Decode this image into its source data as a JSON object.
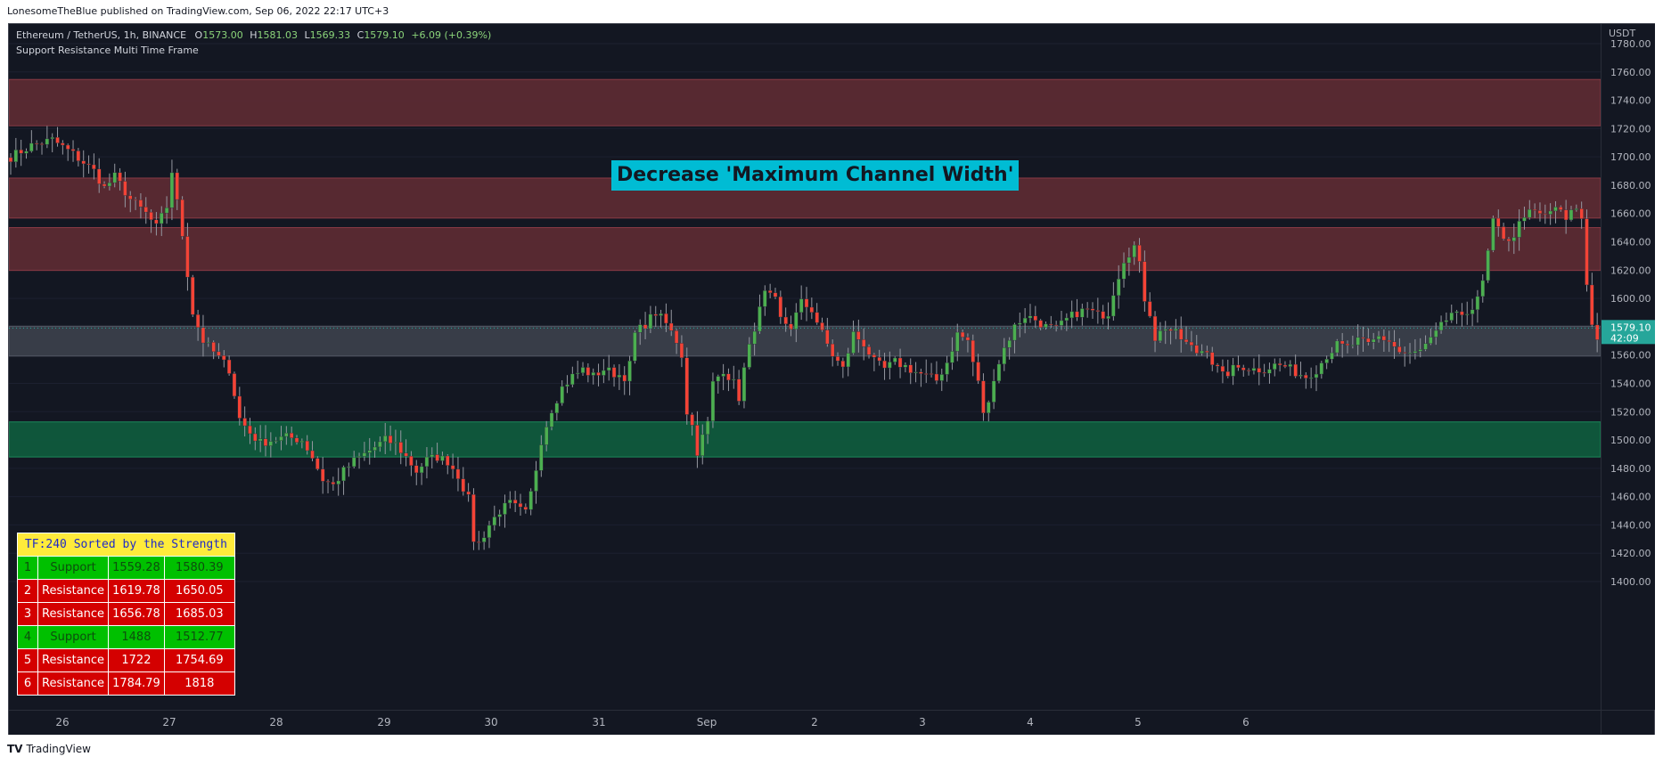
{
  "publisher_line": "LonesomeTheBlue published on TradingView.com, Sep 06, 2022 22:17 UTC+3",
  "legend": {
    "symbol": "Ethereum / TetherUS, 1h, BINANCE",
    "o_label": "O",
    "o": "1573.00",
    "h_label": "H",
    "h": "1581.03",
    "l_label": "L",
    "l": "1569.33",
    "c_label": "C",
    "c": "1579.10",
    "change": "+6.09 (+0.39%)",
    "indicator": "Support Resistance Multi Time Frame"
  },
  "annotation": "Decrease 'Maximum Channel Width'",
  "price_axis": {
    "currency": "USDT",
    "ticks": [
      "1780.00",
      "1760.00",
      "1740.00",
      "1720.00",
      "1700.00",
      "1680.00",
      "1660.00",
      "1640.00",
      "1620.00",
      "1600.00",
      "1580.00",
      "1560.00",
      "1540.00",
      "1520.00",
      "1500.00",
      "1480.00",
      "1460.00",
      "1440.00",
      "1420.00",
      "1400.00"
    ],
    "last_price": "1579.10",
    "countdown": "42:09"
  },
  "time_axis": {
    "labels": [
      "26",
      "27",
      "28",
      "29",
      "30",
      "31",
      "Sep",
      "2",
      "3",
      "4",
      "5",
      "6"
    ]
  },
  "sr_table": {
    "header": "TF:240 Sorted by the Strength",
    "rows": [
      {
        "n": "1",
        "type": "Support",
        "low": "1559.28",
        "high": "1580.39"
      },
      {
        "n": "2",
        "type": "Resistance",
        "low": "1619.78",
        "high": "1650.05"
      },
      {
        "n": "3",
        "type": "Resistance",
        "low": "1656.78",
        "high": "1685.03"
      },
      {
        "n": "4",
        "type": "Support",
        "low": "1488",
        "high": "1512.77"
      },
      {
        "n": "5",
        "type": "Resistance",
        "low": "1722",
        "high": "1754.69"
      },
      {
        "n": "6",
        "type": "Resistance",
        "low": "1784.79",
        "high": "1818"
      }
    ]
  },
  "footer": {
    "logo": "TV",
    "brand": "TradingView"
  },
  "colors": {
    "background": "#131722",
    "up": "#26a69a",
    "up_candle": "#4caf50",
    "down_candle": "#f44336",
    "resistance_zone": "#5b2a33",
    "support_zone": "#0f5a3d",
    "neutral_zone": "#3a3f4b",
    "annotation_bg": "#00bcd4"
  },
  "chart_data": {
    "type": "candlestick",
    "symbol": "ETH/USDT",
    "interval": "1h",
    "y_range": [
      1390,
      1790
    ],
    "x_labels": [
      "26",
      "27",
      "28",
      "29",
      "30",
      "31",
      "Sep",
      "2",
      "3",
      "4",
      "5",
      "6"
    ],
    "zones": [
      {
        "type": "Support",
        "low": 1559.28,
        "high": 1580.39
      },
      {
        "type": "Resistance",
        "low": 1619.78,
        "high": 1650.05
      },
      {
        "type": "Resistance",
        "low": 1656.78,
        "high": 1685.03
      },
      {
        "type": "Support",
        "low": 1488,
        "high": 1512.77
      },
      {
        "type": "Resistance",
        "low": 1722,
        "high": 1754.69
      }
    ],
    "path_points": [
      [
        0,
        1700
      ],
      [
        4,
        1708
      ],
      [
        8,
        1712
      ],
      [
        12,
        1702
      ],
      [
        16,
        1690
      ],
      [
        18,
        1678
      ],
      [
        20,
        1686
      ],
      [
        23,
        1670
      ],
      [
        26,
        1660
      ],
      [
        28,
        1650
      ],
      [
        30,
        1665
      ],
      [
        31,
        1690
      ],
      [
        33,
        1645
      ],
      [
        35,
        1590
      ],
      [
        37,
        1570
      ],
      [
        39,
        1562
      ],
      [
        42,
        1550
      ],
      [
        44,
        1515
      ],
      [
        46,
        1505
      ],
      [
        48,
        1498
      ],
      [
        50,
        1500
      ],
      [
        53,
        1502
      ],
      [
        56,
        1500
      ],
      [
        58,
        1488
      ],
      [
        60,
        1472
      ],
      [
        62,
        1468
      ],
      [
        64,
        1478
      ],
      [
        66,
        1485
      ],
      [
        68,
        1490
      ],
      [
        70,
        1495
      ],
      [
        72,
        1500
      ],
      [
        74,
        1497
      ],
      [
        76,
        1488
      ],
      [
        78,
        1478
      ],
      [
        80,
        1486
      ],
      [
        82,
        1488
      ],
      [
        84,
        1485
      ],
      [
        86,
        1475
      ],
      [
        88,
        1458
      ],
      [
        89,
        1430
      ],
      [
        90,
        1427
      ],
      [
        92,
        1440
      ],
      [
        94,
        1450
      ],
      [
        96,
        1455
      ],
      [
        98,
        1450
      ],
      [
        99,
        1448
      ],
      [
        100,
        1462
      ],
      [
        101,
        1480
      ],
      [
        102,
        1500
      ],
      [
        104,
        1522
      ],
      [
        106,
        1537
      ],
      [
        108,
        1545
      ],
      [
        110,
        1550
      ],
      [
        112,
        1545
      ],
      [
        114,
        1550
      ],
      [
        116,
        1547
      ],
      [
        118,
        1545
      ],
      [
        119,
        1553
      ],
      [
        120,
        1575
      ],
      [
        122,
        1582
      ],
      [
        124,
        1590
      ],
      [
        126,
        1582
      ],
      [
        128,
        1570
      ],
      [
        129,
        1560
      ],
      [
        130,
        1520
      ],
      [
        131,
        1510
      ],
      [
        132,
        1492
      ],
      [
        134,
        1512
      ],
      [
        135,
        1540
      ],
      [
        137,
        1550
      ],
      [
        139,
        1540
      ],
      [
        140,
        1530
      ],
      [
        141,
        1550
      ],
      [
        143,
        1580
      ],
      [
        145,
        1603
      ],
      [
        147,
        1598
      ],
      [
        148,
        1585
      ],
      [
        150,
        1580
      ],
      [
        152,
        1597
      ],
      [
        154,
        1592
      ],
      [
        156,
        1575
      ],
      [
        158,
        1560
      ],
      [
        160,
        1550
      ],
      [
        162,
        1575
      ],
      [
        164,
        1568
      ],
      [
        166,
        1555
      ],
      [
        168,
        1550
      ],
      [
        170,
        1555
      ],
      [
        172,
        1552
      ],
      [
        174,
        1548
      ],
      [
        176,
        1545
      ],
      [
        178,
        1542
      ],
      [
        180,
        1555
      ],
      [
        182,
        1575
      ],
      [
        184,
        1570
      ],
      [
        185,
        1555
      ],
      [
        186,
        1540
      ],
      [
        187,
        1520
      ],
      [
        188,
        1525
      ],
      [
        189,
        1545
      ],
      [
        191,
        1565
      ],
      [
        193,
        1580
      ],
      [
        195,
        1588
      ],
      [
        197,
        1585
      ],
      [
        199,
        1580
      ],
      [
        201,
        1578
      ],
      [
        203,
        1585
      ],
      [
        205,
        1590
      ],
      [
        207,
        1592
      ],
      [
        209,
        1588
      ],
      [
        211,
        1590
      ],
      [
        212,
        1605
      ],
      [
        214,
        1628
      ],
      [
        216,
        1637
      ],
      [
        217,
        1623
      ],
      [
        218,
        1600
      ],
      [
        219,
        1590
      ],
      [
        220,
        1572
      ],
      [
        222,
        1580
      ],
      [
        224,
        1575
      ],
      [
        226,
        1568
      ],
      [
        228,
        1562
      ],
      [
        230,
        1565
      ],
      [
        231,
        1555
      ],
      [
        233,
        1545
      ],
      [
        235,
        1550
      ],
      [
        237,
        1552
      ],
      [
        239,
        1550
      ],
      [
        241,
        1550
      ],
      [
        243,
        1553
      ],
      [
        245,
        1552
      ],
      [
        247,
        1548
      ],
      [
        249,
        1545
      ],
      [
        251,
        1550
      ],
      [
        253,
        1560
      ],
      [
        255,
        1567
      ],
      [
        257,
        1565
      ],
      [
        259,
        1570
      ],
      [
        261,
        1567
      ],
      [
        263,
        1573
      ],
      [
        265,
        1570
      ],
      [
        267,
        1562
      ],
      [
        269,
        1560
      ],
      [
        271,
        1563
      ],
      [
        273,
        1570
      ],
      [
        275,
        1580
      ],
      [
        277,
        1590
      ],
      [
        279,
        1585
      ],
      [
        281,
        1595
      ],
      [
        283,
        1610
      ],
      [
        285,
        1655
      ],
      [
        287,
        1640
      ],
      [
        289,
        1645
      ],
      [
        291,
        1660
      ],
      [
        293,
        1660
      ],
      [
        295,
        1658
      ],
      [
        297,
        1665
      ],
      [
        299,
        1655
      ],
      [
        301,
        1665
      ],
      [
        302,
        1655
      ],
      [
        303,
        1610
      ],
      [
        304,
        1582
      ],
      [
        305,
        1573
      ],
      [
        306,
        1579.1
      ]
    ],
    "last": {
      "o": 1573.0,
      "h": 1581.03,
      "l": 1569.33,
      "c": 1579.1
    }
  }
}
